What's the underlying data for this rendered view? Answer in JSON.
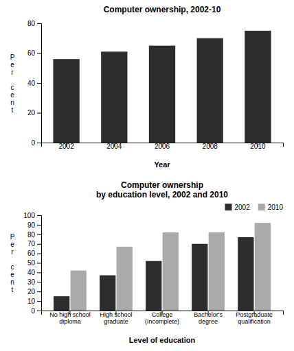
{
  "chart_data": [
    {
      "type": "bar",
      "title": "Computer ownership, 2002-10",
      "categories": [
        "2002",
        "2004",
        "2006",
        "2008",
        "2010"
      ],
      "values": [
        56,
        61,
        65,
        70,
        75
      ],
      "color": "#2d2d2d",
      "xlabel": "Year",
      "ylabel": "Per cent",
      "ylim": [
        0,
        80
      ],
      "yticks": [
        0,
        20,
        40,
        60,
        80
      ],
      "grid": false
    },
    {
      "type": "bar",
      "title": "Computer ownership\nby education level, 2002 and 2010",
      "categories": [
        "No high school\ndiploma",
        "High school\ngraduate",
        "College\n(Incomplete)",
        "Bachelor's\ndegree",
        "Postgraduate\nqualification"
      ],
      "series": [
        {
          "name": "2002",
          "color": "#2d2d2d",
          "values": [
            15,
            37,
            52,
            70,
            77
          ]
        },
        {
          "name": "2010",
          "color": "#aaaaaa",
          "values": [
            42,
            67,
            82,
            82,
            92
          ]
        }
      ],
      "xlabel": "Level of education",
      "ylabel": "Per cent",
      "ylim": [
        0,
        100
      ],
      "yticks": [
        0,
        10,
        20,
        30,
        40,
        50,
        60,
        70,
        80,
        90,
        100
      ],
      "grid": false,
      "legend": "top right"
    }
  ]
}
